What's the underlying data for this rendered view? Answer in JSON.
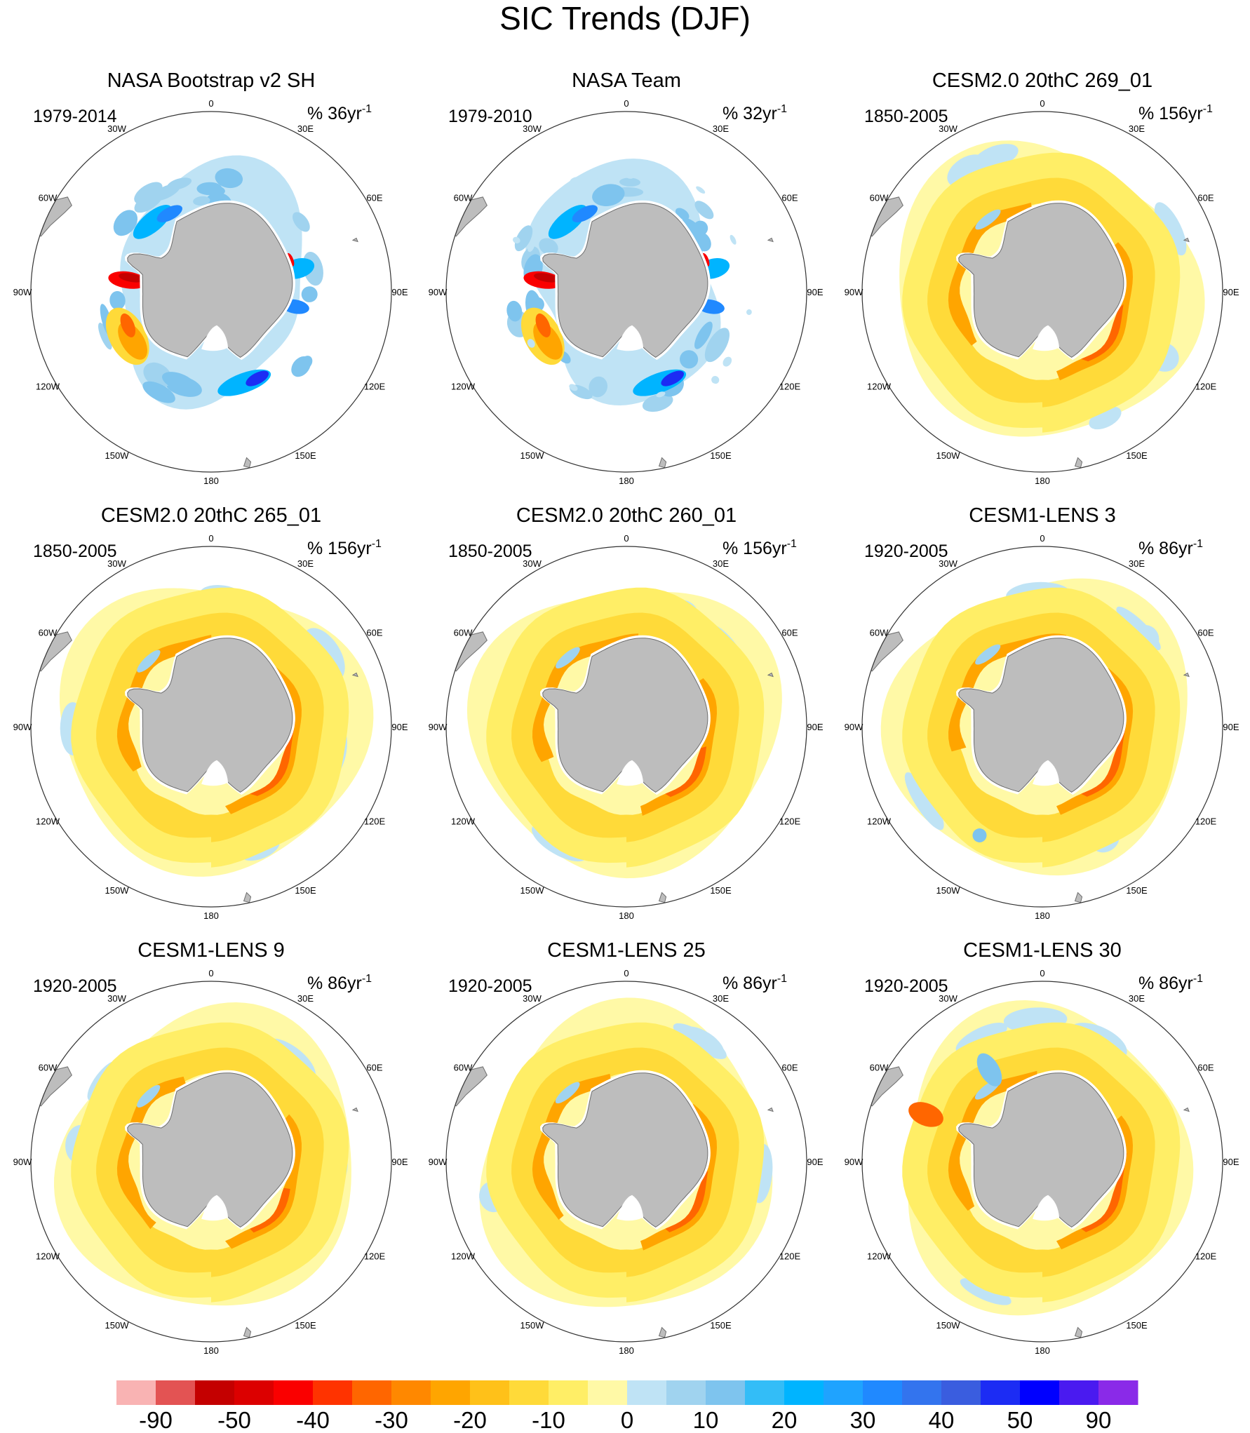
{
  "title": "SIC Trends (DJF)",
  "colors": {
    "land": "#bdbdbd",
    "land_stroke": "#6e6e6e",
    "border": "#333333",
    "ice_edge": "#ffffff"
  },
  "longitude_labels": [
    {
      "deg": 0,
      "text": "0"
    },
    {
      "deg": 30,
      "text": "30E"
    },
    {
      "deg": 60,
      "text": "60E"
    },
    {
      "deg": 90,
      "text": "90E"
    },
    {
      "deg": 120,
      "text": "120E"
    },
    {
      "deg": 150,
      "text": "150E"
    },
    {
      "deg": 180,
      "text": "180"
    },
    {
      "deg": -150,
      "text": "150W"
    },
    {
      "deg": -120,
      "text": "120W"
    },
    {
      "deg": -90,
      "text": "90W"
    },
    {
      "deg": -60,
      "text": "60W"
    },
    {
      "deg": -30,
      "text": "30W"
    }
  ],
  "panels": [
    {
      "title": "NASA Bootstrap v2 SH",
      "period": "1979-2014",
      "unit_prefix": "% ",
      "scale": "36",
      "unit_suffix": "yr",
      "exponent": "-1",
      "kind": "obs",
      "seed": 1
    },
    {
      "title": "NASA Team",
      "period": "1979-2010",
      "unit_prefix": "% ",
      "scale": "32",
      "unit_suffix": "yr",
      "exponent": "-1",
      "kind": "obs",
      "seed": 2
    },
    {
      "title": "CESM2.0 20thC 269_01",
      "period": "1850-2005",
      "unit_prefix": "% ",
      "scale": "156",
      "unit_suffix": "yr",
      "exponent": "-1",
      "kind": "model",
      "seed": 3
    },
    {
      "title": "CESM2.0 20thC 265_01",
      "period": "1850-2005",
      "unit_prefix": "% ",
      "scale": "156",
      "unit_suffix": "yr",
      "exponent": "-1",
      "kind": "model",
      "seed": 4
    },
    {
      "title": "CESM2.0 20thC 260_01",
      "period": "1850-2005",
      "unit_prefix": "% ",
      "scale": "156",
      "unit_suffix": "yr",
      "exponent": "-1",
      "kind": "model",
      "seed": 5
    },
    {
      "title": "CESM1-LENS 3",
      "period": "1920-2005",
      "unit_prefix": "% ",
      "scale": "86",
      "unit_suffix": "yr",
      "exponent": "-1",
      "kind": "model",
      "seed": 6
    },
    {
      "title": "CESM1-LENS 9",
      "period": "1920-2005",
      "unit_prefix": "% ",
      "scale": "86",
      "unit_suffix": "yr",
      "exponent": "-1",
      "kind": "model",
      "seed": 7
    },
    {
      "title": "CESM1-LENS 25",
      "period": "1920-2005",
      "unit_prefix": "% ",
      "scale": "86",
      "unit_suffix": "yr",
      "exponent": "-1",
      "kind": "model",
      "seed": 8
    },
    {
      "title": "CESM1-LENS 30",
      "period": "1920-2005",
      "unit_prefix": "% ",
      "scale": "86",
      "unit_suffix": "yr",
      "exponent": "-1",
      "kind": "model",
      "seed": 9
    }
  ],
  "colorbar": {
    "boxes": [
      "#f9b3b3",
      "#e35353",
      "#c40000",
      "#dc0000",
      "#fa0000",
      "#ff3300",
      "#ff6600",
      "#ff8800",
      "#ffa500",
      "#ffc119",
      "#ffda39",
      "#ffee66",
      "#fff9a6",
      "#bfe3f5",
      "#a0d3ef",
      "#7ec4ee",
      "#33bdf7",
      "#00b4ff",
      "#1fa3ff",
      "#2089ff",
      "#3374ee",
      "#3a5ddf",
      "#1c2cf4",
      "#0000ff",
      "#4a1af0",
      "#8a2ae8"
    ],
    "labels": [
      "-90",
      "-50",
      "-40",
      "-30",
      "-20",
      "-10",
      "0",
      "10",
      "20",
      "30",
      "40",
      "50",
      "90"
    ]
  }
}
